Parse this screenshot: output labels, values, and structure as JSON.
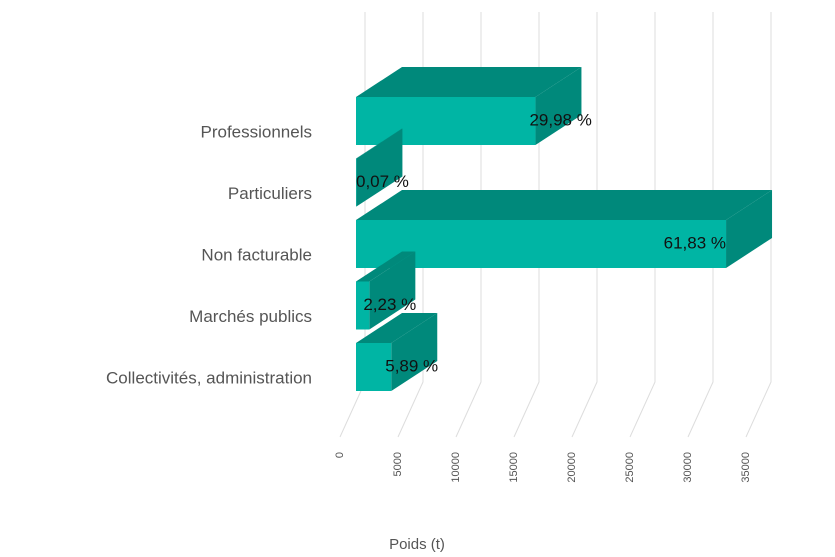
{
  "chart_data": {
    "type": "bar3d",
    "categories": [
      "Professionnels",
      "Particuliers",
      "Non facturable",
      "Marchés publics",
      "Collectivités, administration"
    ],
    "values": [
      15470,
      36,
      31900,
      1150,
      3040
    ],
    "data_labels": [
      "29,98 %",
      "0,07 %",
      "61,83 %",
      "2,23 %",
      "5,89 %"
    ],
    "color": "#00b5a4",
    "side_color": "#00897b",
    "xlabel": "Poids (t)",
    "xlim": [
      0,
      35000
    ],
    "xticks": [
      0,
      5000,
      10000,
      15000,
      20000,
      25000,
      30000,
      35000
    ],
    "grid": true
  }
}
